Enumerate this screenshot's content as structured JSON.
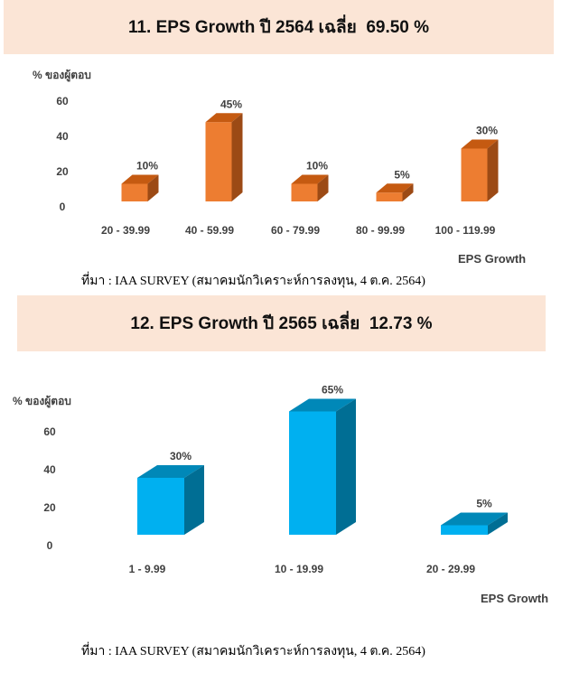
{
  "chart_data": [
    {
      "type": "bar",
      "title": "11. EPS Growth ปี 2564 เฉลี่ย  69.50 %",
      "ylabel": "% ของผู้ตอบ",
      "xlabel": "EPS Growth",
      "categories": [
        "20 - 39.99",
        "40 - 59.99",
        "60 - 79.99",
        "80 - 99.99",
        "100 - 119.99"
      ],
      "values": [
        10,
        45,
        10,
        5,
        30
      ],
      "value_labels": [
        "10%",
        "45%",
        "10%",
        "5%",
        "30%"
      ],
      "yticks": [
        "0",
        "20",
        "40",
        "60"
      ],
      "ylim": [
        0,
        60
      ],
      "grid": false,
      "bar_style": "3d-column",
      "colors": {
        "front": "#ed7d31",
        "top": "#c55a11",
        "side": "#9c4a15"
      }
    },
    {
      "type": "bar",
      "title": "12. EPS Growth ปี 2565 เฉลี่ย  12.73 %",
      "ylabel": "% ของผู้ตอบ",
      "xlabel": "EPS Growth",
      "categories": [
        "1 - 9.99",
        "10 - 19.99",
        "20 - 29.99"
      ],
      "values": [
        30,
        65,
        5
      ],
      "value_labels": [
        "30%",
        "65%",
        "5%"
      ],
      "yticks": [
        "0",
        "20",
        "40",
        "60"
      ],
      "ylim": [
        0,
        60
      ],
      "grid": false,
      "bar_style": "3d-column",
      "colors": {
        "front": "#00b0f0",
        "top": "#0088b8",
        "side": "#006e94"
      }
    }
  ],
  "sources": [
    "ที่มา : IAA SURVEY (สมาคมนักวิเคราะห์การลงทุน, 4 ต.ค. 2564)",
    "ที่มา : IAA SURVEY (สมาคมนักวิเคราะห์การลงทุน, 4 ต.ค. 2564)"
  ]
}
